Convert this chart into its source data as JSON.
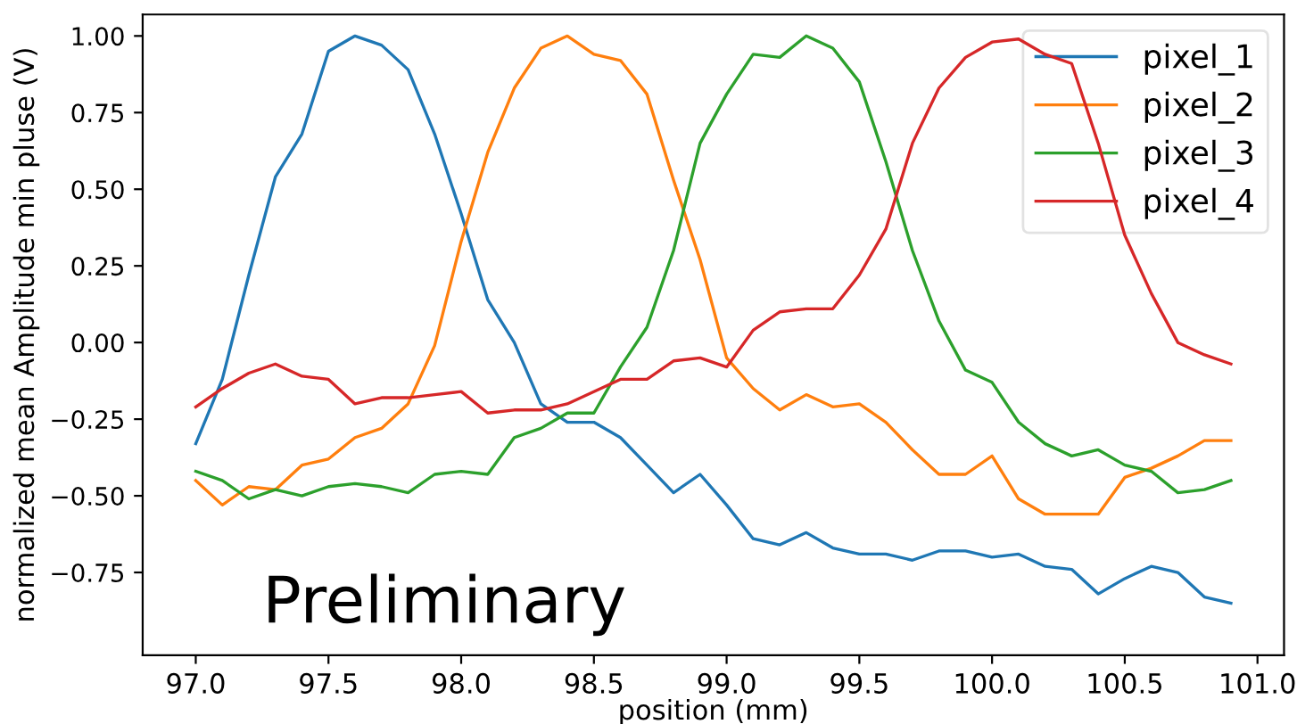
{
  "chart_data": {
    "type": "line",
    "xlabel": "position (mm)",
    "ylabel": "normalized mean Amplitude min pluse (V)",
    "x": [
      97.0,
      97.1,
      97.2,
      97.3,
      97.4,
      97.5,
      97.6,
      97.7,
      97.8,
      97.9,
      98.0,
      98.1,
      98.2,
      98.3,
      98.4,
      98.5,
      98.6,
      98.7,
      98.8,
      98.9,
      99.0,
      99.1,
      99.2,
      99.3,
      99.4,
      99.5,
      99.6,
      99.7,
      99.8,
      99.9,
      100.0,
      100.1,
      100.2,
      100.3,
      100.4,
      100.5,
      100.6,
      100.7,
      100.8,
      100.9
    ],
    "series": [
      {
        "name": "pixel_1",
        "color": "#1f77b4",
        "values": [
          -0.33,
          -0.12,
          0.22,
          0.54,
          0.68,
          0.95,
          1.0,
          0.97,
          0.89,
          0.68,
          0.42,
          0.14,
          0.0,
          -0.2,
          -0.26,
          -0.26,
          -0.31,
          -0.4,
          -0.49,
          -0.43,
          -0.53,
          -0.64,
          -0.66,
          -0.62,
          -0.67,
          -0.69,
          -0.69,
          -0.71,
          -0.68,
          -0.68,
          -0.7,
          -0.69,
          -0.73,
          -0.74,
          -0.82,
          -0.77,
          -0.73,
          -0.75,
          -0.83,
          -0.85
        ]
      },
      {
        "name": "pixel_2",
        "color": "#ff7f0e",
        "values": [
          -0.45,
          -0.53,
          -0.47,
          -0.48,
          -0.4,
          -0.38,
          -0.31,
          -0.28,
          -0.2,
          -0.01,
          0.33,
          0.62,
          0.83,
          0.96,
          1.0,
          0.94,
          0.92,
          0.81,
          0.53,
          0.27,
          -0.05,
          -0.15,
          -0.22,
          -0.17,
          -0.21,
          -0.2,
          -0.26,
          -0.35,
          -0.43,
          -0.43,
          -0.37,
          -0.51,
          -0.56,
          -0.56,
          -0.56,
          -0.44,
          -0.41,
          -0.37,
          -0.32,
          -0.32
        ]
      },
      {
        "name": "pixel_3",
        "color": "#2ca02c",
        "values": [
          -0.42,
          -0.45,
          -0.51,
          -0.48,
          -0.5,
          -0.47,
          -0.46,
          -0.47,
          -0.49,
          -0.43,
          -0.42,
          -0.43,
          -0.31,
          -0.28,
          -0.23,
          -0.23,
          -0.08,
          0.05,
          0.3,
          0.65,
          0.81,
          0.94,
          0.93,
          1.0,
          0.96,
          0.85,
          0.59,
          0.3,
          0.07,
          -0.09,
          -0.13,
          -0.26,
          -0.33,
          -0.37,
          -0.35,
          -0.4,
          -0.42,
          -0.49,
          -0.48,
          -0.45
        ]
      },
      {
        "name": "pixel_4",
        "color": "#d62728",
        "values": [
          -0.21,
          -0.15,
          -0.1,
          -0.07,
          -0.11,
          -0.12,
          -0.2,
          -0.18,
          -0.18,
          -0.17,
          -0.16,
          -0.23,
          -0.22,
          -0.22,
          -0.2,
          -0.16,
          -0.12,
          -0.12,
          -0.06,
          -0.05,
          -0.08,
          0.04,
          0.1,
          0.11,
          0.11,
          0.22,
          0.37,
          0.65,
          0.83,
          0.93,
          0.98,
          0.99,
          0.94,
          0.91,
          0.65,
          0.35,
          0.16,
          0.0,
          -0.04,
          -0.07
        ]
      }
    ],
    "xlim": [
      96.8,
      101.1
    ],
    "ylim": [
      -1.02,
      1.07
    ],
    "xticks": [
      {
        "value": 97.0,
        "label": "97.0"
      },
      {
        "value": 97.5,
        "label": "97.5"
      },
      {
        "value": 98.0,
        "label": "98.0"
      },
      {
        "value": 98.5,
        "label": "98.5"
      },
      {
        "value": 99.0,
        "label": "99.0"
      },
      {
        "value": 99.5,
        "label": "99.5"
      },
      {
        "value": 100.0,
        "label": "100.0"
      },
      {
        "value": 100.5,
        "label": "100.5"
      },
      {
        "value": 101.0,
        "label": "101.0"
      }
    ],
    "yticks": [
      {
        "value": -0.75,
        "label": "−0.75"
      },
      {
        "value": -0.5,
        "label": "−0.50"
      },
      {
        "value": -0.25,
        "label": "−0.25"
      },
      {
        "value": 0.0,
        "label": "0.00"
      },
      {
        "value": 0.25,
        "label": "0.25"
      },
      {
        "value": 0.5,
        "label": "0.50"
      },
      {
        "value": 0.75,
        "label": "0.75"
      },
      {
        "value": 1.0,
        "label": "1.00"
      }
    ],
    "legend": "top right",
    "grid": false,
    "marker": "none",
    "line_style": "solid",
    "annotations": [
      "Preliminary"
    ]
  }
}
